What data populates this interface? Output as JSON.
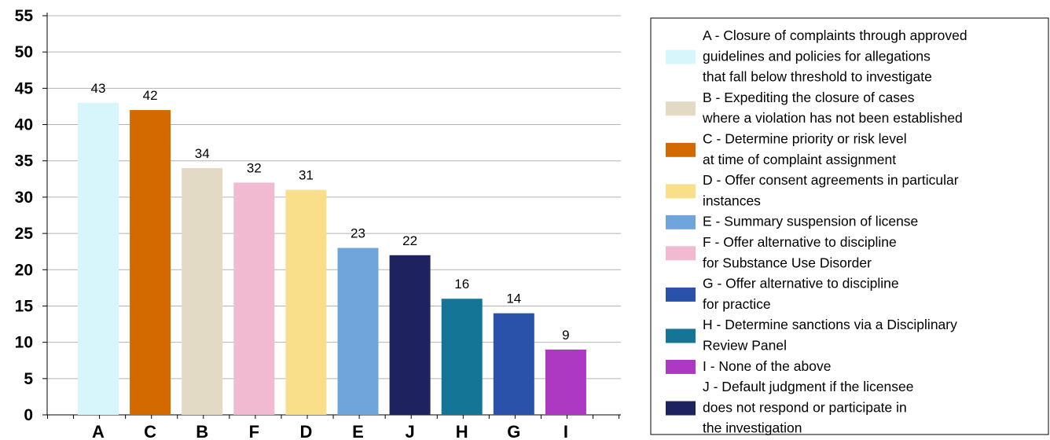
{
  "chart_data": {
    "type": "bar",
    "categories": [
      "A",
      "C",
      "B",
      "F",
      "D",
      "E",
      "J",
      "H",
      "G",
      "I"
    ],
    "values": [
      43,
      42,
      34,
      32,
      31,
      23,
      22,
      16,
      14,
      9
    ],
    "colors": [
      "#d6f6fb",
      "#d26a00",
      "#e3dac6",
      "#f2bad0",
      "#f9df8a",
      "#6fa5db",
      "#1e225e",
      "#157596",
      "#2a52aa",
      "#ad38c1"
    ],
    "ylim": [
      0,
      55
    ],
    "yticks": [
      "0",
      "5",
      "10",
      "15",
      "20",
      "25",
      "30",
      "35",
      "40",
      "45",
      "50",
      "55"
    ],
    "grid": true,
    "legend_position": "right",
    "legend": [
      {
        "key": "A",
        "color": "#d6f6fb",
        "lines": [
          "A - Closure of complaints through approved",
          "guidelines and policies for allegations",
          "that fall below threshold to investigate"
        ]
      },
      {
        "key": "B",
        "color": "#e3dac6",
        "lines": [
          "B - Expediting the closure of cases",
          "where a violation has not been established"
        ]
      },
      {
        "key": "C",
        "color": "#d26a00",
        "lines": [
          "C - Determine priority or risk level",
          "at time of complaint assignment"
        ]
      },
      {
        "key": "D",
        "color": "#f9df8a",
        "lines": [
          "D - Offer consent agreements in particular",
          "instances"
        ]
      },
      {
        "key": "E",
        "color": "#6fa5db",
        "lines": [
          "E - Summary suspension of license"
        ]
      },
      {
        "key": "F",
        "color": "#f2bad0",
        "lines": [
          "F - Offer alternative to discipline",
          "for Substance Use Disorder"
        ]
      },
      {
        "key": "G",
        "color": "#2a52aa",
        "lines": [
          "G - Offer alternative to discipline",
          "for practice"
        ]
      },
      {
        "key": "H",
        "color": "#157596",
        "lines": [
          "H - Determine sanctions via a Disciplinary",
          "Review Panel"
        ]
      },
      {
        "key": "I",
        "color": "#ad38c1",
        "lines": [
          "I - None of the above"
        ]
      },
      {
        "key": "J",
        "color": "#1e225e",
        "lines": [
          "J - Default judgment if the licensee",
          "does not respond or participate in",
          "the investigation"
        ]
      }
    ]
  }
}
